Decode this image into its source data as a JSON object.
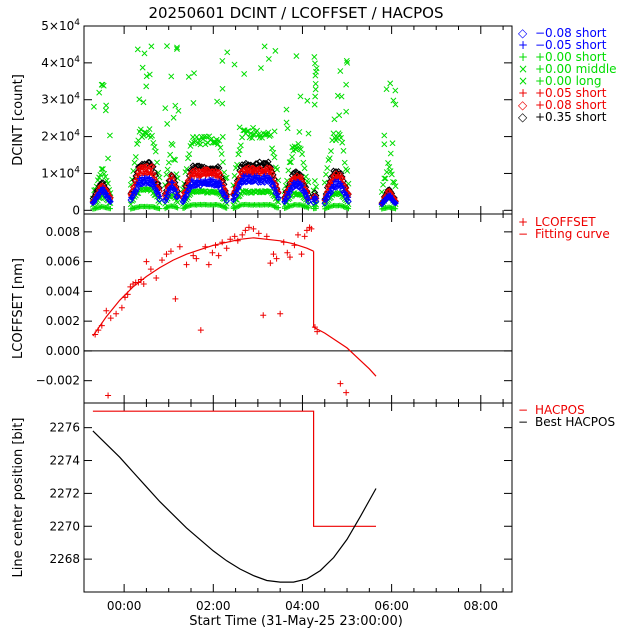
{
  "title": "20250601 DCINT / LCOFFSET / HACPOS",
  "xlabel": "Start Time (31-May-25 23:00:00)",
  "x_ticks": [
    {
      "h": 1,
      "label": "00:00"
    },
    {
      "h": 3,
      "label": "02:00"
    },
    {
      "h": 5,
      "label": "04:00"
    },
    {
      "h": 7,
      "label": "06:00"
    },
    {
      "h": 9,
      "label": "08:00"
    }
  ],
  "xlim": [
    0.1,
    9.7
  ],
  "colors": {
    "blue": "#0000ff",
    "green": "#00dd00",
    "red": "#ee0000",
    "black": "#000000"
  },
  "chart_data": [
    {
      "type": "scatter",
      "panel": "dcint",
      "ylabel": "DCINT [count]",
      "ylim": [
        -1000,
        50000
      ],
      "y_ticks": [
        {
          "v": 0,
          "base": "0",
          "exp": ""
        },
        {
          "v": 10000,
          "base": "1×10",
          "exp": "4"
        },
        {
          "v": 20000,
          "base": "2×10",
          "exp": "4"
        },
        {
          "v": 30000,
          "base": "3×10",
          "exp": "4"
        },
        {
          "v": 40000,
          "base": "4×10",
          "exp": "4"
        },
        {
          "v": 50000,
          "base": "5×10",
          "exp": "4"
        }
      ],
      "legend": [
        {
          "sym": "◇",
          "text": "−0.08 short",
          "color": "#0000ff"
        },
        {
          "sym": "+",
          "text": "−0.05 short",
          "color": "#0000ff"
        },
        {
          "sym": "+",
          "text": "+0.00 short",
          "color": "#00dd00"
        },
        {
          "sym": "×",
          "text": "+0.00 middle",
          "color": "#00dd00"
        },
        {
          "sym": "×",
          "text": "+0.00 long",
          "color": "#00dd00"
        },
        {
          "sym": "+",
          "text": "+0.05 short",
          "color": "#ee0000"
        },
        {
          "sym": "◇",
          "text": "+0.08 short",
          "color": "#ee0000"
        },
        {
          "sym": "◇",
          "text": "+0.35 short",
          "color": "#000000"
        }
      ],
      "segments": [
        {
          "start": 0.3,
          "end": 0.72
        },
        {
          "start": 1.15,
          "end": 1.82
        },
        {
          "start": 1.92,
          "end": 2.22
        },
        {
          "start": 2.32,
          "end": 3.32
        },
        {
          "start": 3.45,
          "end": 4.48
        },
        {
          "start": 4.6,
          "end": 5.15
        },
        {
          "start": 5.25,
          "end": 5.32
        },
        {
          "start": 5.5,
          "end": 6.05
        },
        {
          "start": 6.78,
          "end": 7.1
        }
      ],
      "series": [
        {
          "name": "+0.00 long",
          "marker": "x",
          "color": "#00dd00",
          "levels": [
            11000,
            21000,
            21500,
            19000,
            20500,
            17000,
            18500,
            20000,
            15000
          ],
          "scatter_up": 25000,
          "scatter_n": 80
        },
        {
          "name": "+0.00 middle",
          "marker": "x",
          "color": "#00dd00",
          "levels": [
            4000,
            5500,
            5500,
            5000,
            5000,
            4500,
            4000,
            4500,
            5000
          ],
          "scatter_up": 0,
          "scatter_n": 0
        },
        {
          "name": "+0.00 short",
          "marker": "+",
          "color": "#00dd00",
          "levels": [
            1000,
            1000,
            1500,
            1500,
            1500,
            1500,
            1200,
            1300,
            1000
          ],
          "scatter_up": 0,
          "scatter_n": 0
        },
        {
          "name": "+0.35 short",
          "marker": "diamond",
          "color": "#000000",
          "levels": [
            8000,
            12500,
            12000,
            11500,
            12500,
            10000,
            10000,
            10500,
            6500
          ],
          "scatter_up": 0,
          "scatter_n": 0
        },
        {
          "name": "+0.08 short",
          "marker": "diamond",
          "color": "#ee0000",
          "levels": [
            7000,
            11500,
            11000,
            10500,
            11000,
            9000,
            9000,
            9500,
            6000
          ],
          "scatter_up": 0,
          "scatter_n": 0
        },
        {
          "name": "+0.05 short",
          "marker": "+",
          "color": "#ee0000",
          "levels": [
            6500,
            10000,
            10500,
            9500,
            10000,
            8500,
            8500,
            8500,
            5500
          ],
          "scatter_up": 0,
          "scatter_n": 0
        },
        {
          "name": "−0.05 short",
          "marker": "+",
          "color": "#0000ff",
          "levels": [
            6000,
            8500,
            9000,
            8000,
            9000,
            7500,
            7500,
            7500,
            5000
          ],
          "scatter_up": 0,
          "scatter_n": 0
        },
        {
          "name": "−0.08 short",
          "marker": "diamond",
          "color": "#0000ff",
          "levels": [
            5500,
            7500,
            8000,
            7000,
            8000,
            6500,
            6500,
            6500,
            4500
          ],
          "scatter_up": 0,
          "scatter_n": 0
        }
      ]
    },
    {
      "type": "scatter",
      "panel": "lcoffset",
      "ylabel": "LCOFFSET [nm]",
      "ylim": [
        -0.0035,
        0.0092
      ],
      "y_ticks": [
        {
          "v": -0.002,
          "label": "−0.002"
        },
        {
          "v": 0.0,
          "label": "0.000"
        },
        {
          "v": 0.002,
          "label": "0.002"
        },
        {
          "v": 0.004,
          "label": "0.004"
        },
        {
          "v": 0.006,
          "label": "0.006"
        },
        {
          "v": 0.008,
          "label": "0.008"
        }
      ],
      "zero_line": 0,
      "legend": [
        {
          "sym": "+",
          "text": "LCOFFSET",
          "color": "#ee0000"
        },
        {
          "sym": "−",
          "text": "Fitting curve",
          "color": "#ee0000"
        }
      ],
      "points_x": [
        0.35,
        0.42,
        0.5,
        0.6,
        0.7,
        0.82,
        0.95,
        1.02,
        1.08,
        1.14,
        1.2,
        1.26,
        1.32,
        1.38,
        1.44,
        1.5,
        1.6,
        1.72,
        1.85,
        1.95,
        2.05,
        2.15,
        2.25,
        2.4,
        2.55,
        2.62,
        2.72,
        2.82,
        2.9,
        2.98,
        3.05,
        3.12,
        3.2,
        3.3,
        3.38,
        3.48,
        3.55,
        3.65,
        3.72,
        3.8,
        3.9,
        4.02,
        4.12,
        4.2,
        4.28,
        4.35,
        4.42,
        4.5,
        4.58,
        4.66,
        4.72,
        4.82,
        4.9,
        4.98,
        5.05,
        5.1,
        5.16,
        5.2,
        5.28,
        5.33,
        5.85,
        5.98,
        0.64
      ],
      "points_y": [
        0.0011,
        0.0014,
        0.0017,
        0.0027,
        0.0022,
        0.0025,
        0.0029,
        0.0036,
        0.0038,
        0.0043,
        0.0045,
        0.0046,
        0.0046,
        0.0048,
        0.0045,
        0.006,
        0.0055,
        0.0049,
        0.0061,
        0.0065,
        0.0067,
        0.0035,
        0.007,
        0.0058,
        0.0064,
        0.0062,
        0.0014,
        0.007,
        0.0058,
        0.0066,
        0.0071,
        0.0064,
        0.0073,
        0.0069,
        0.0075,
        0.0077,
        0.0074,
        0.0078,
        0.0081,
        0.0083,
        0.0082,
        0.0079,
        0.0024,
        0.0077,
        0.0059,
        0.0065,
        0.0062,
        0.0025,
        0.0073,
        0.0066,
        0.0063,
        0.0071,
        0.0078,
        0.0065,
        0.0077,
        0.0081,
        0.0083,
        0.0082,
        0.0016,
        0.0013,
        -0.0022,
        -0.0028,
        -0.003
      ],
      "fit_a_x": [
        0.3,
        0.6,
        0.9,
        1.2,
        1.5,
        1.8,
        2.1,
        2.4,
        2.7,
        3.0,
        3.3,
        3.6,
        3.9,
        4.2,
        4.5,
        4.8,
        5.1,
        5.25
      ],
      "fit_a_y": [
        0.001,
        0.0023,
        0.0034,
        0.0043,
        0.005,
        0.0056,
        0.0061,
        0.0065,
        0.0068,
        0.0071,
        0.0073,
        0.0075,
        0.0076,
        0.0075,
        0.0074,
        0.0072,
        0.0069,
        0.0067
      ],
      "fit_b_x": [
        5.25,
        5.25,
        5.5,
        5.75,
        6.0,
        6.25,
        6.5,
        6.65
      ],
      "fit_b_y": [
        0.0067,
        0.0016,
        0.0012,
        0.0007,
        0.0002,
        -0.0005,
        -0.0012,
        -0.0017
      ]
    },
    {
      "type": "line",
      "panel": "hacpos",
      "ylabel": "Line center position [bit]",
      "ylim": [
        2266.0,
        2277.5
      ],
      "y_ticks": [
        {
          "v": 2268,
          "label": "2268"
        },
        {
          "v": 2270,
          "label": "2270"
        },
        {
          "v": 2272,
          "label": "2272"
        },
        {
          "v": 2274,
          "label": "2274"
        },
        {
          "v": 2276,
          "label": "2276"
        }
      ],
      "legend": [
        {
          "sym": "−",
          "text": "HACPOS",
          "color": "#ee0000"
        },
        {
          "sym": "−",
          "text": "Best HACPOS",
          "color": "#000000"
        }
      ],
      "series": [
        {
          "name": "HACPOS",
          "color": "#ee0000",
          "x": [
            0.3,
            5.25,
            5.25,
            6.65
          ],
          "y": [
            2277.0,
            2277.0,
            2270.0,
            2270.0
          ]
        },
        {
          "name": "Best HACPOS",
          "color": "#000000",
          "x": [
            0.3,
            0.6,
            0.9,
            1.2,
            1.5,
            1.8,
            2.1,
            2.4,
            2.7,
            3.0,
            3.3,
            3.6,
            3.9,
            4.2,
            4.5,
            4.8,
            5.1,
            5.4,
            5.7,
            6.0,
            6.3,
            6.65
          ],
          "y": [
            2275.8,
            2275.0,
            2274.2,
            2273.3,
            2272.4,
            2271.5,
            2270.7,
            2269.9,
            2269.2,
            2268.5,
            2267.9,
            2267.4,
            2267.0,
            2266.7,
            2266.6,
            2266.6,
            2266.8,
            2267.3,
            2268.1,
            2269.2,
            2270.6,
            2272.3
          ]
        }
      ]
    }
  ]
}
